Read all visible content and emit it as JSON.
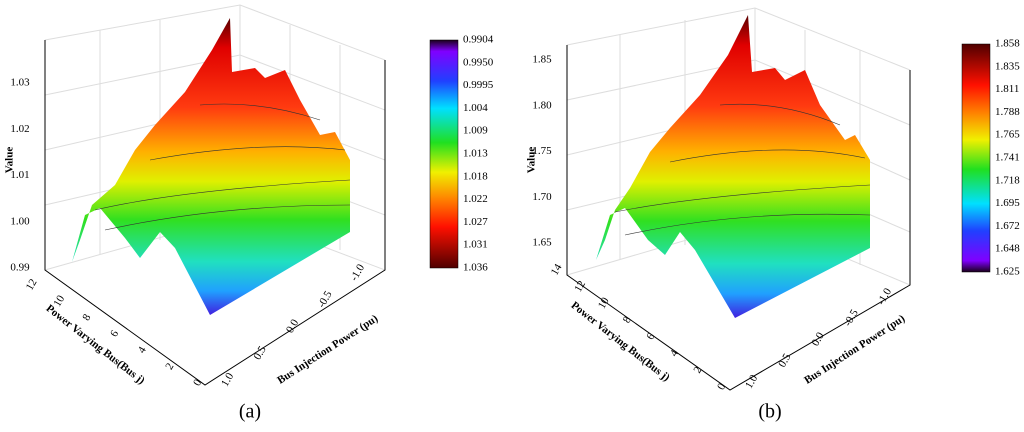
{
  "panels": [
    {
      "label": "(a)",
      "z_axis": {
        "title": "Value",
        "ticks": [
          "0.99",
          "1.00",
          "1.01",
          "1.02",
          "1.03"
        ]
      },
      "depth_axis": {
        "title": "Power Varying Bus(Bus j)",
        "ticks": [
          "0",
          "2",
          "4",
          "6",
          "8",
          "10",
          "12"
        ]
      },
      "x_axis": {
        "title": "Bus Injection Power (pu)",
        "ticks": [
          "1.0",
          "0.5",
          "0.0",
          "-0.5",
          "-1.0"
        ]
      },
      "colorbar": [
        "0.9904",
        "0.9950",
        "0.9995",
        "1.004",
        "1.009",
        "1.013",
        "1.018",
        "1.022",
        "1.027",
        "1.031",
        "1.036"
      ]
    },
    {
      "label": "(b)",
      "z_axis": {
        "title": "Value",
        "ticks": [
          "1.65",
          "1.70",
          "1.75",
          "1.80",
          "1.85"
        ]
      },
      "depth_axis": {
        "title": "Power Varying Bus(Bus j)",
        "ticks": [
          "0",
          "2",
          "4",
          "6",
          "8",
          "10",
          "12",
          "14"
        ]
      },
      "x_axis": {
        "title": "Bus Injection Power (pu)",
        "ticks": [
          "1.0",
          "0.5",
          "0.0",
          "-0.5",
          "-1.0"
        ]
      },
      "colorbar": [
        "1.858",
        "1.835",
        "1.811",
        "1.788",
        "1.765",
        "1.741",
        "1.718",
        "1.695",
        "1.672",
        "1.648",
        "1.625"
      ]
    }
  ]
}
